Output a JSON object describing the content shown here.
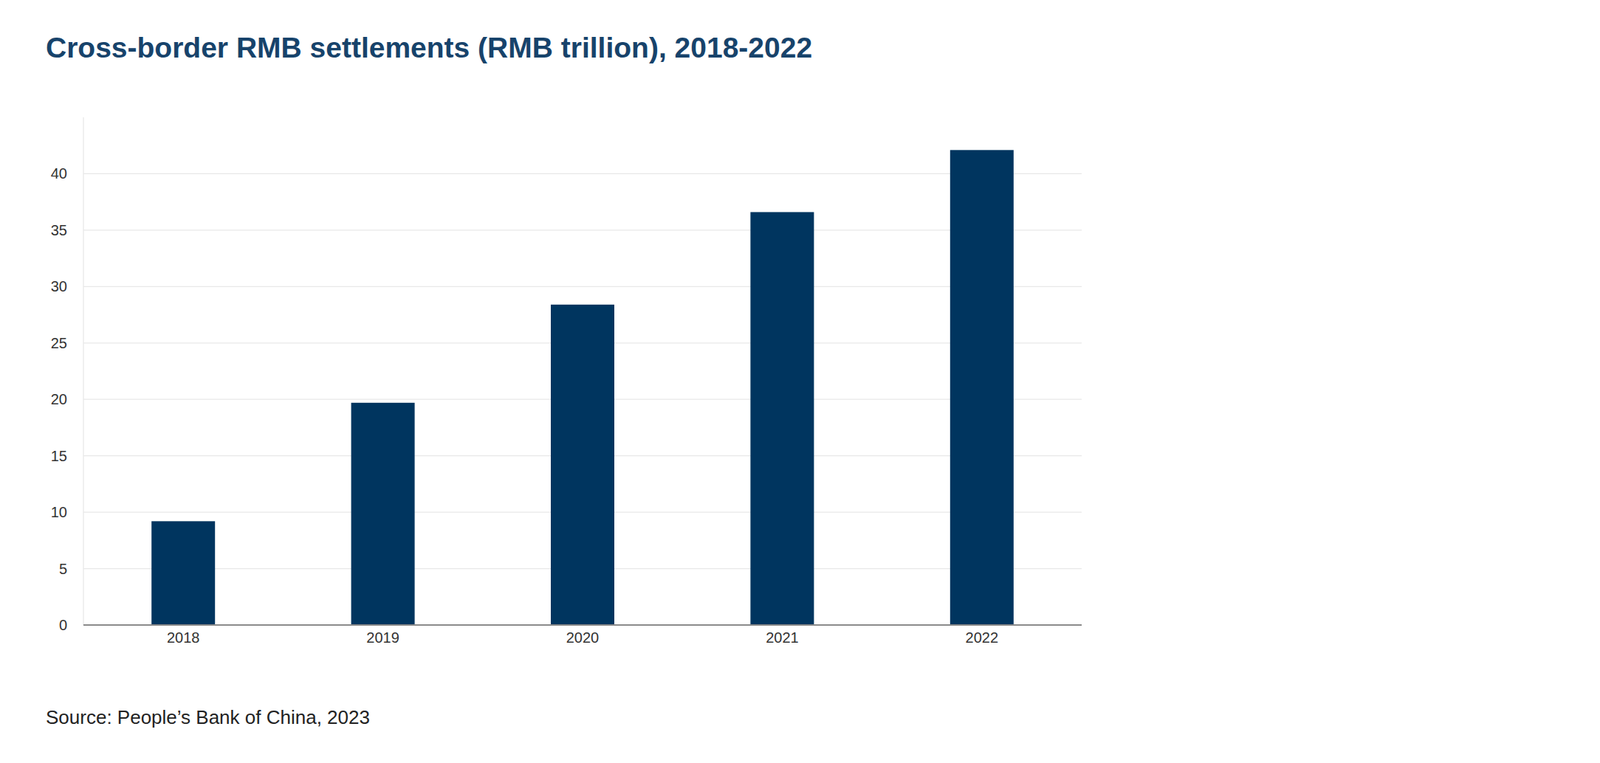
{
  "chart_data": {
    "type": "bar",
    "title": "Cross-border RMB settlements (RMB trillion), 2018-2022",
    "source": "Source: People’s Bank of China, 2023",
    "categories": [
      "2018",
      "2019",
      "2020",
      "2021",
      "2022"
    ],
    "values": [
      9.2,
      19.7,
      28.4,
      36.6,
      42.1
    ],
    "color": "#00355f",
    "ylim": [
      0,
      45
    ],
    "yticks": [
      0,
      5,
      10,
      15,
      20,
      25,
      30,
      35,
      40
    ],
    "grid": true
  }
}
